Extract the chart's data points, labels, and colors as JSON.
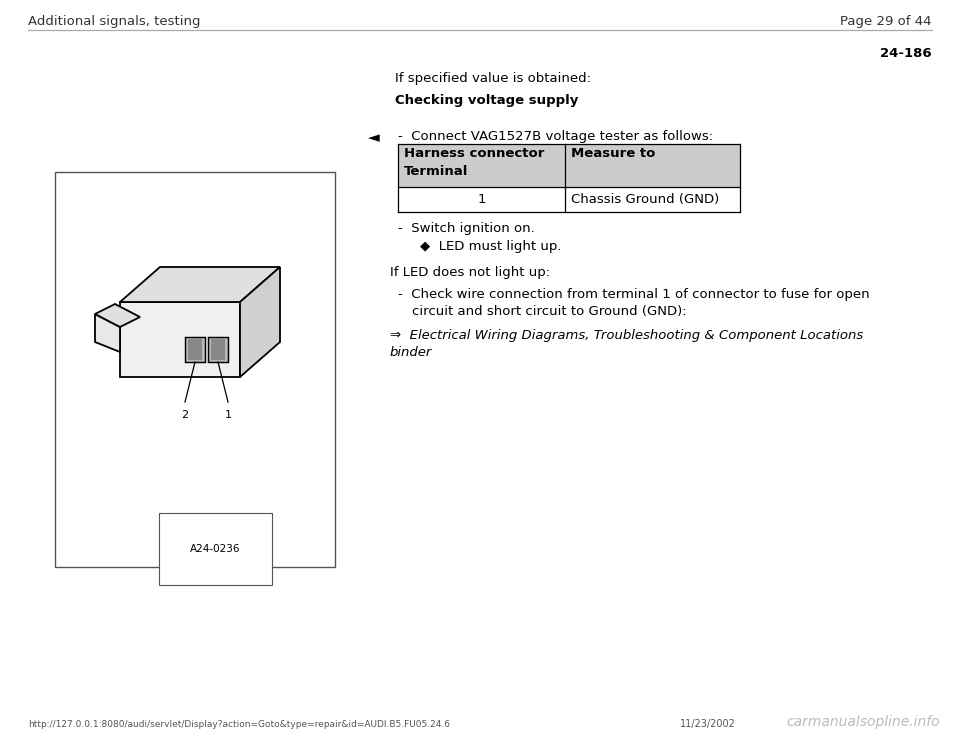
{
  "bg_color": "#ffffff",
  "header_left": "Additional signals, testing",
  "header_right": "Page 29 of 44",
  "page_number": "24-186",
  "section_label": "If specified value is obtained:",
  "section_heading": "Checking voltage supply",
  "bullet_intro": "-  Connect VAG1527B voltage tester as follows:",
  "table_header_col1a": "Harness connector",
  "table_header_col1b": "Terminal",
  "table_header_col2": "Measure to",
  "table_row_col1": "1",
  "table_row_col2": "Chassis Ground (GND)",
  "table_header_bg": "#d3d3d3",
  "bullet2": "-  Switch ignition on.",
  "bullet3": "◆  LED must light up.",
  "section2_label": "If LED does not light up:",
  "bullet4_line1": "-  Check wire connection from terminal 1 of connector to fuse for open",
  "bullet4_line2": "   circuit and short circuit to Ground (GND):",
  "arrow_text_line1": "⇒  Electrical Wiring Diagrams, Troubleshooting & Component Locations",
  "arrow_text_line2": "binder",
  "footer_url": "http://127.0.0.1:8080/audi/servlet/Display?action=Goto&type=repair&id=AUDI.B5.FU05.24.6",
  "footer_date": "11/23/2002",
  "footer_watermark": "carmanualsopline.info",
  "image_label": "A24-0236"
}
